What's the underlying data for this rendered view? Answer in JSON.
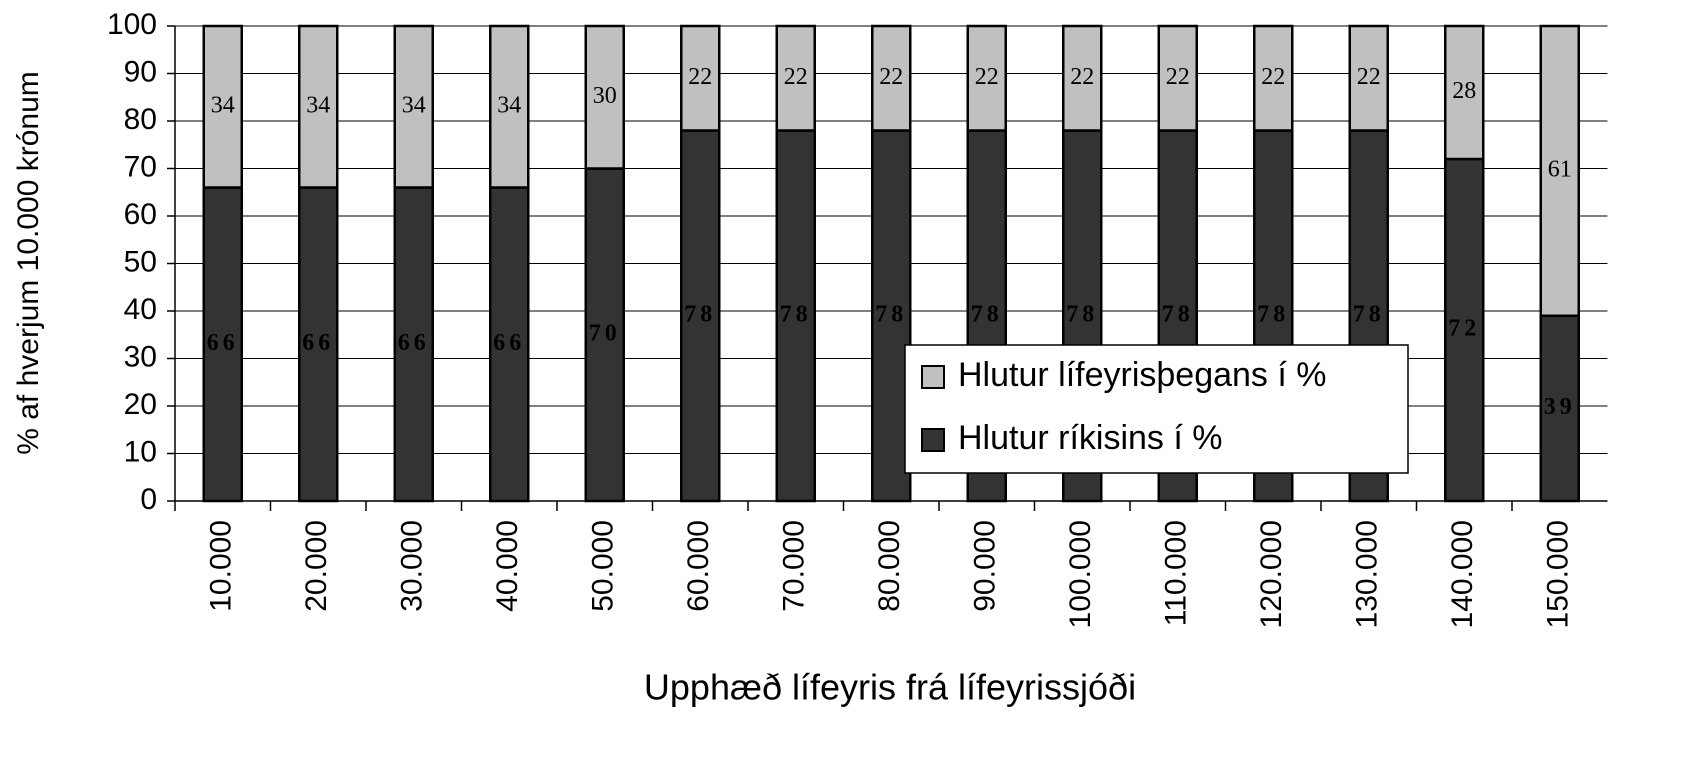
{
  "chart_data": {
    "type": "stacked-bar",
    "x_label": "Upphæð lífeyris frá lífeyrissjóði",
    "y_label": "% af hverjum 10.000 krónum",
    "categories": [
      "10.000",
      "20.000",
      "30.000",
      "40.000",
      "50.000",
      "60.000",
      "70.000",
      "80.000",
      "90.000",
      "100.000",
      "110.000",
      "120.000",
      "130.000",
      "140.000",
      "150.000"
    ],
    "series": [
      {
        "name": "Hlutur ríkisins í %",
        "color": "#333333",
        "label_color": "#ffffff",
        "values": [
          66,
          66,
          66,
          66,
          70,
          78,
          78,
          78,
          78,
          78,
          78,
          78,
          78,
          72,
          39
        ]
      },
      {
        "name": "Hlutur lífeyrisþegans í %",
        "color": "#c0c0c0",
        "label_color": "#000000",
        "values": [
          34,
          34,
          34,
          34,
          30,
          22,
          22,
          22,
          22,
          22,
          22,
          22,
          22,
          28,
          61
        ]
      }
    ],
    "ylim": [
      0,
      100
    ],
    "yticks": [
      0,
      10,
      20,
      30,
      40,
      50,
      60,
      70,
      80,
      90,
      100
    ],
    "grid": true,
    "legend": "center-right"
  }
}
